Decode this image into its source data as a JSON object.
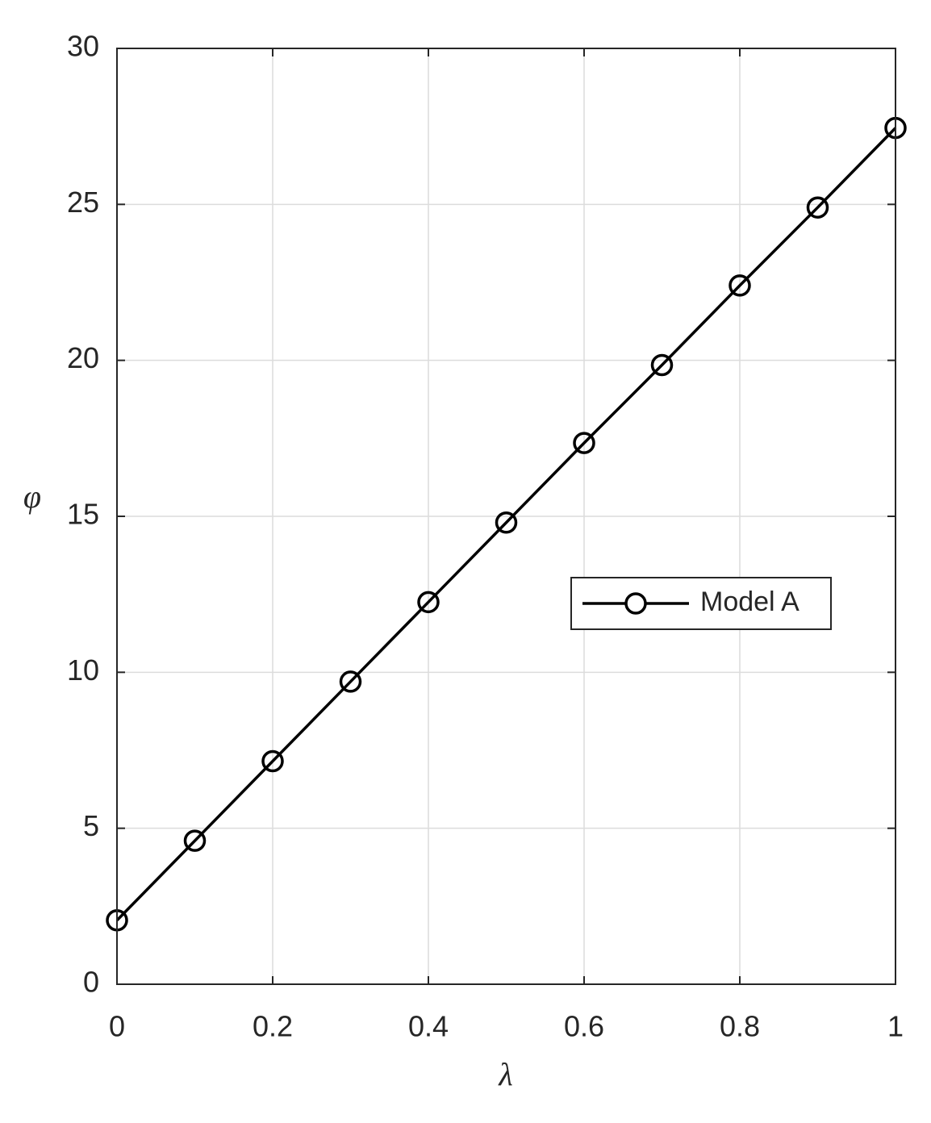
{
  "chart_data": {
    "type": "line",
    "xlabel": "λ",
    "ylabel": "φ",
    "x": [
      0,
      0.1,
      0.2,
      0.3,
      0.4,
      0.5,
      0.6,
      0.7,
      0.8,
      0.9,
      1
    ],
    "series": [
      {
        "name": "Model A",
        "color": "#000000",
        "marker": "circle",
        "values": [
          2.05,
          4.6,
          7.15,
          9.7,
          12.25,
          14.8,
          17.35,
          19.85,
          22.4,
          24.9,
          27.45
        ]
      }
    ],
    "xlim": [
      0,
      1
    ],
    "xticks": [
      0,
      0.2,
      0.4,
      0.6,
      0.8,
      1
    ],
    "ylim": [
      0,
      30
    ],
    "yticks": [
      0,
      5,
      10,
      15,
      20,
      25,
      30
    ],
    "grid": true,
    "legend": "east"
  }
}
